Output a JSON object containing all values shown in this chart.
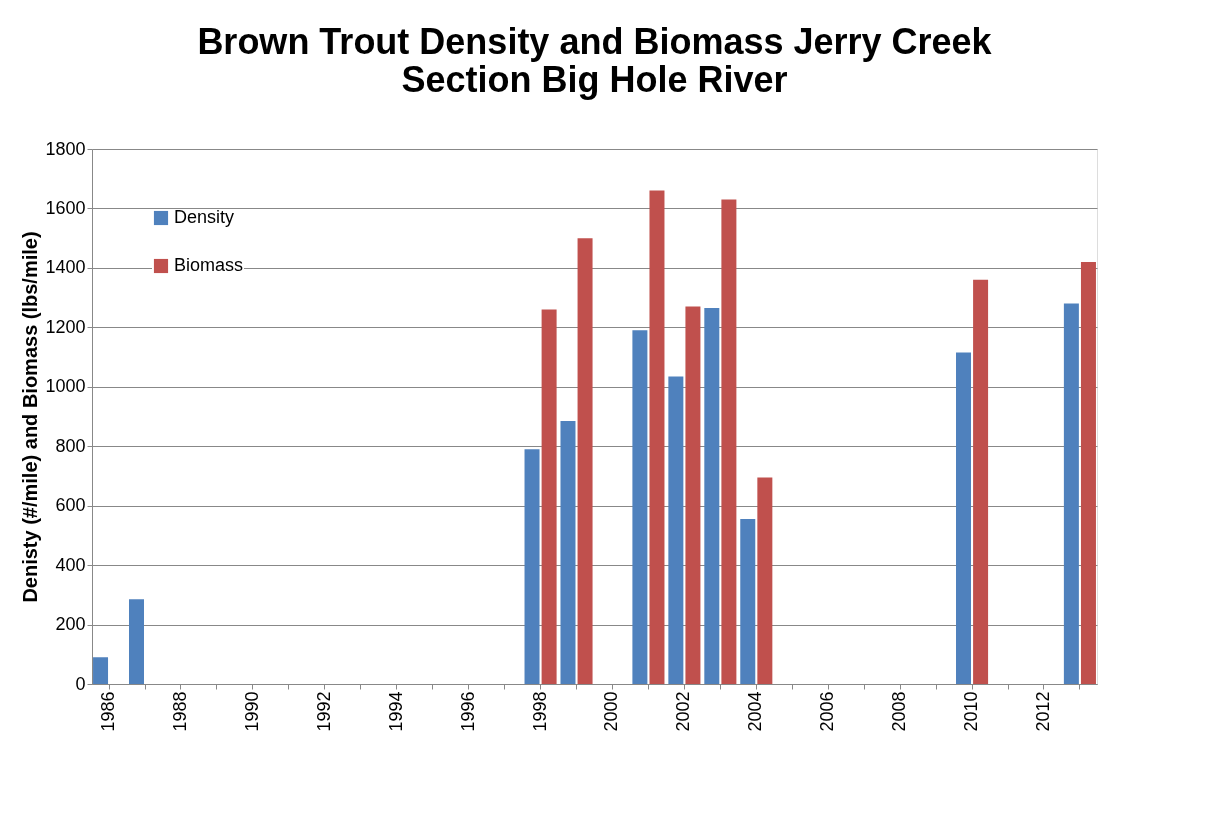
{
  "chart_data": {
    "type": "bar",
    "title": "Brown Trout Density and Biomass Jerry Creek Section Big Hole River",
    "ylabel": "Denisty (#/mile) and Biomass (lbs/mile)",
    "categories": [
      "1986",
      null,
      "1988",
      null,
      "1990",
      null,
      "1992",
      null,
      "1994",
      null,
      "1996",
      null,
      "1998",
      null,
      "2000",
      null,
      "2002",
      null,
      "2004",
      null,
      "2006",
      null,
      "2008",
      null,
      "2010",
      null,
      "2012",
      null
    ],
    "series": [
      {
        "name": "Density",
        "color": "#4f81bd",
        "values": [
          90,
          285,
          null,
          null,
          null,
          null,
          null,
          null,
          null,
          null,
          null,
          null,
          790,
          885,
          null,
          1190,
          1035,
          1265,
          555,
          null,
          null,
          null,
          null,
          null,
          1115,
          null,
          null,
          1280
        ]
      },
      {
        "name": "Biomass",
        "color": "#c0504d",
        "values": [
          null,
          null,
          null,
          null,
          null,
          null,
          null,
          null,
          null,
          null,
          null,
          null,
          1260,
          1500,
          null,
          1660,
          1270,
          1630,
          695,
          null,
          null,
          null,
          null,
          null,
          1360,
          null,
          null,
          1420
        ]
      }
    ],
    "ylim": [
      0,
      1800
    ],
    "yticks": [
      0,
      200,
      400,
      600,
      800,
      1000,
      1200,
      1400,
      1600,
      1800
    ],
    "grid": "y",
    "legend": "top left"
  }
}
